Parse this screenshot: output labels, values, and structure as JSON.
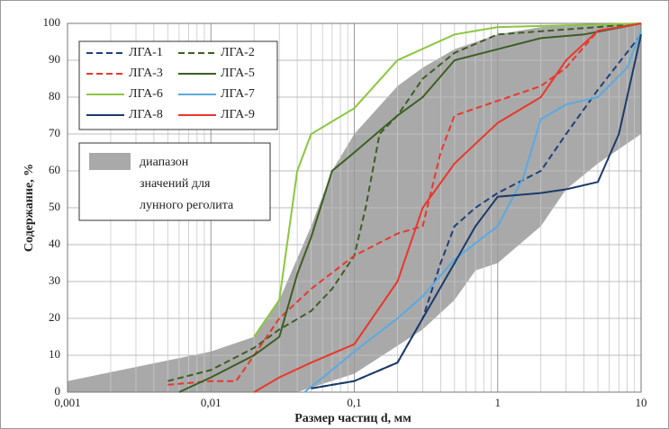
{
  "chart_data": {
    "type": "line",
    "xlabel": "Размер частиц d, мм",
    "ylabel": "Содержание, %",
    "xscale": "log",
    "xlim": [
      0.001,
      10
    ],
    "ylim": [
      0,
      100
    ],
    "xticks": [
      {
        "value": 0.001,
        "label": "0,001"
      },
      {
        "value": 0.01,
        "label": "0,01"
      },
      {
        "value": 0.1,
        "label": "0,1"
      },
      1,
      10
    ],
    "yticks": [
      0,
      10,
      20,
      30,
      40,
      50,
      60,
      70,
      80,
      90,
      100
    ],
    "grid": true,
    "minor_grid": true,
    "legend": "upper left",
    "band": {
      "name_lines": [
        "диапазон",
        "значений для",
        "лунного реголита"
      ],
      "color": "#a9a9a9",
      "upper": {
        "x": [
          0.001,
          0.01,
          0.02,
          0.03,
          0.05,
          0.07,
          0.1,
          0.2,
          0.3,
          0.5,
          1,
          2,
          5,
          10
        ],
        "values": [
          3,
          11,
          15,
          25,
          45,
          60,
          70,
          83,
          88,
          93,
          97,
          99,
          100,
          100
        ]
      },
      "lower": {
        "x": [
          0.001,
          0.04,
          0.1,
          0.3,
          0.5,
          0.7,
          1,
          2,
          3,
          5,
          10
        ],
        "values": [
          0,
          0,
          5,
          17,
          25,
          33,
          35,
          45,
          55,
          62,
          70
        ]
      }
    },
    "series": [
      {
        "name": "ЛГА-1",
        "color": "#1f3f7a",
        "dashed": true,
        "x": [
          0.05,
          0.1,
          0.2,
          0.3,
          0.4,
          0.5,
          0.7,
          1,
          2,
          3,
          5,
          10
        ],
        "values": [
          1,
          3,
          8,
          20,
          35,
          45,
          50,
          54,
          60,
          70,
          82,
          97
        ]
      },
      {
        "name": "ЛГА-2",
        "color": "#3d5e22",
        "dashed": true,
        "x": [
          0.005,
          0.01,
          0.02,
          0.03,
          0.05,
          0.07,
          0.1,
          0.12,
          0.15,
          0.2,
          0.3,
          0.5,
          1,
          5,
          10
        ],
        "values": [
          3,
          6,
          12,
          17,
          22,
          28,
          37,
          50,
          70,
          75,
          85,
          92,
          97,
          99,
          100
        ]
      },
      {
        "name": "ЛГА-3",
        "color": "#e8382b",
        "dashed": true,
        "x": [
          0.005,
          0.01,
          0.015,
          0.02,
          0.03,
          0.05,
          0.1,
          0.2,
          0.3,
          0.4,
          0.5,
          1,
          2,
          3,
          5,
          10
        ],
        "values": [
          2,
          3,
          3,
          10,
          20,
          28,
          37,
          43,
          45,
          65,
          75,
          79,
          83,
          88,
          98,
          100
        ]
      },
      {
        "name": "ЛГА-5",
        "color": "#3d5e22",
        "dashed": false,
        "x": [
          0.006,
          0.01,
          0.02,
          0.03,
          0.04,
          0.05,
          0.07,
          0.1,
          0.2,
          0.3,
          0.5,
          1,
          2,
          4,
          10
        ],
        "values": [
          0,
          4,
          10,
          15,
          32,
          42,
          60,
          65,
          75,
          80,
          90,
          93,
          96,
          97,
          100
        ]
      },
      {
        "name": "ЛГА-6",
        "color": "#8cc63f",
        "dashed": false,
        "x": [
          0.02,
          0.03,
          0.04,
          0.05,
          0.1,
          0.2,
          0.5,
          1,
          10
        ],
        "values": [
          15,
          25,
          60,
          70,
          77,
          90,
          97,
          99,
          100
        ]
      },
      {
        "name": "ЛГА-7",
        "color": "#5aaae2",
        "dashed": false,
        "x": [
          0.045,
          0.07,
          0.1,
          0.2,
          0.3,
          0.5,
          1,
          1.5,
          2,
          3,
          5,
          8,
          10
        ],
        "values": [
          0,
          6,
          11,
          20,
          26,
          36,
          45,
          58,
          74,
          78,
          80,
          88,
          98
        ]
      },
      {
        "name": "ЛГА-8",
        "color": "#1b3a6b",
        "dashed": false,
        "x": [
          0.05,
          0.1,
          0.2,
          0.3,
          0.5,
          0.7,
          1,
          2,
          3,
          5,
          7,
          10
        ],
        "values": [
          1,
          3,
          8,
          20,
          35,
          45,
          53,
          54,
          55,
          57,
          70,
          97
        ]
      },
      {
        "name": "ЛГА-9",
        "color": "#e8382b",
        "dashed": false,
        "x": [
          0.02,
          0.03,
          0.05,
          0.1,
          0.2,
          0.3,
          0.5,
          1,
          2,
          3,
          5,
          10
        ],
        "values": [
          0,
          4,
          8,
          13,
          30,
          50,
          62,
          73,
          80,
          90,
          98,
          100
        ]
      }
    ]
  }
}
